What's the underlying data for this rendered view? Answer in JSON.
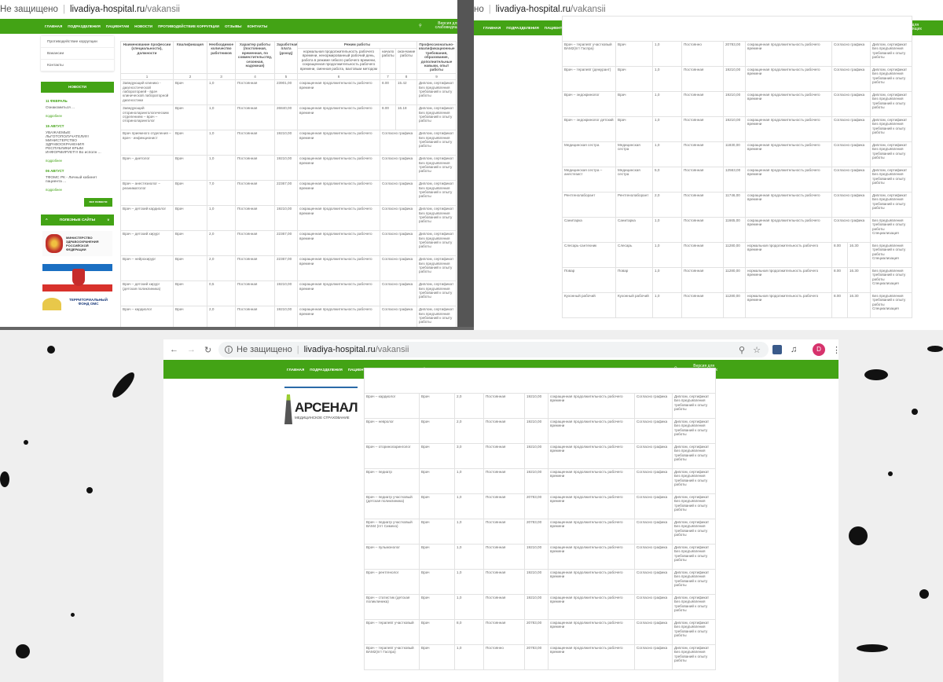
{
  "browser": {
    "security": "Не защищено",
    "security_partial": "но",
    "domain": "livadiya-hospital.ru",
    "path": "/vakansii",
    "avatar_letter": "D"
  },
  "nav": {
    "items": [
      "ГЛАВНАЯ",
      "ПОДРАЗДЕЛЕНИЯ",
      "ПАЦИЕНТАМ",
      "НОВОСТИ",
      "ПРОТИВОДЕЙСТВИЕ КОРРУПЦИИ",
      "ОТЗЫВЫ",
      "КОНТАКТЫ"
    ],
    "accessibility": "Версия для слабовидящих",
    "color": "#43a315"
  },
  "sidebar": {
    "menu": [
      "Противодействие коррупции",
      "Вакансии",
      "Контакты"
    ],
    "news_title": "НОВОСТИ",
    "news": [
      {
        "date": "11 ФЕВРАЛЬ",
        "text": "Ознакомиться ..."
      },
      {
        "date": "15 АВГУСТ",
        "text": "УВАЖАЕМЫЕ ЛЬГОТОПОЛУЧАТЕЛИ!!! МИНИСТЕРСТВО ЗДРАВООХРАНЕНИЯ РЕСПУБЛИКИ КРЫМ ИНФОРМИРУЕТ!!! Во исполн ..."
      },
      {
        "date": "06 АВГУСТ",
        "text": "ТФОМС РК - Личный кабинет пациента ..."
      }
    ],
    "more_label": "подробнее",
    "all_news": "все новости",
    "useful_sites": "ПОЛЕЗНЫЕ САЙТЫ",
    "logos": [
      "МИНИСТЕРСТВО ЗДРАВООХРАНЕНИЯ РОССИЙСКОЙ ФЕДЕРАЦИИ",
      "ТЕРРИТОРИАЛЬНЫЙ ФОНД ОМС",
      "АРСЕНАЛ",
      "МЕДИЦИНСКОЕ СТРАХОВАНИЕ"
    ]
  },
  "table": {
    "headers": [
      "Наименование профессии (специальности), должности",
      "Квалификация",
      "Необходимое количество работников",
      "Характер работы (постоянная, временная, по совместительству, сезонная, надомная)",
      "Заработная плата (доход)",
      "Режим работы",
      "Профессионально-квалификационные требования, образование, дополнительные навыки, опыт работы"
    ],
    "mode_sub": [
      "нормальная продолжительность рабочего времени, ненормированный рабочий день, работа в режиме гибкого рабочего времени, сокращенная продолжительность рабочего времени, сменная работа, вахтовым методом",
      "начало работы",
      "окончание работы"
    ],
    "numbers": [
      "1",
      "2",
      "3",
      "4",
      "5",
      "6",
      "7",
      "8",
      "9"
    ],
    "short": "сокращенная продолжительность рабочего времени",
    "normal": "нормальная продолжительность рабочего времени",
    "schedule": "Согласно графика",
    "req_doc": "Диплом, сертификат Без предъявления требований к опыту работы",
    "req_spec": "Без предъявления требований к опыту работы Специализация",
    "panel_a": [
      [
        "Заведующий клинико - диагностической лабораторией - врач клинической лабораторной диагностики",
        "Врач",
        "1,0",
        "Постоянная",
        "23901,00",
        "s",
        "8.00",
        "15.42",
        "d"
      ],
      [
        "Заведующий оториноларингологическим отделением – врач – оториноларинголог",
        "Врач",
        "1,0",
        "Постоянная",
        "26840,00",
        "s",
        "8.00",
        "16.18",
        "d"
      ],
      [
        "Врач приемного отделения – врач - инфекционист",
        "Врач",
        "1,0",
        "Постоянная",
        "19210,00",
        "s",
        "g",
        "",
        "d"
      ],
      [
        "Врач – диетолог",
        "Врач",
        "1,0",
        "Постоянная",
        "19210,00",
        "s",
        "g",
        "",
        "d"
      ],
      [
        "Врач – анестезиолог – реаниматолог",
        "Врач",
        "7,0",
        "Постоянная",
        "22367,00",
        "s",
        "g",
        "",
        "d"
      ],
      [
        "Врач – детский кардиолог",
        "Врач",
        "1,0",
        "Постоянная",
        "19210,00",
        "s",
        "g",
        "",
        "d"
      ],
      [
        "Врач – детский хирург",
        "Врач",
        "2,0",
        "Постоянная",
        "22367,00",
        "s",
        "g",
        "",
        "d"
      ],
      [
        "Врач – нейрохирург",
        "Врач",
        "2,0",
        "Постоянная",
        "22367,00",
        "s",
        "g",
        "",
        "d"
      ],
      [
        "Врач – детский хирург (детская поликлиника)",
        "Врач",
        "0,5",
        "Постоянная",
        "19210,00",
        "s",
        "g",
        "",
        "d"
      ],
      [
        "Врач – кардиолог",
        "Врач",
        "2,0",
        "Постоянная",
        "19210,00",
        "s",
        "g",
        "",
        "d"
      ]
    ],
    "panel_b": [
      [
        "Врач – терапевт участковый ВАМ2(пгт Гаспра)",
        "Врач",
        "1,0",
        "Постоянно",
        "20783,00",
        "s",
        "g",
        "",
        "d"
      ],
      [
        "Врач – терапевт (дежурант)",
        "Врач",
        "1,0",
        "Постоянная",
        "19210,00",
        "s",
        "g",
        "",
        "d"
      ],
      [
        "Врач – эндокринолог",
        "Врач",
        "1,0",
        "Постоянная",
        "19210,00",
        "s",
        "g",
        "",
        "d"
      ],
      [
        "Врач – эндокринолог детский",
        "Врач",
        "1,0",
        "Постоянная",
        "19210,00",
        "s",
        "g",
        "",
        "d"
      ],
      [
        "Медицинская сестра",
        "Медицинская сестра",
        "1,0",
        "Постоянная",
        "11830,00",
        "s",
        "g",
        "",
        "d"
      ],
      [
        "Медицинская сестра – анестезист",
        "Медицинская сестра",
        "5,0",
        "Постоянная",
        "12563,00",
        "s",
        "g",
        "",
        "d"
      ],
      [
        "Рентгенолаборант",
        "Рентгенолаборант",
        "2,0",
        "Постоянная",
        "11746,00",
        "s",
        "g",
        "",
        "d"
      ],
      [
        "Санитарка",
        "Санитарка",
        "1,0",
        "Постоянная",
        "11665,00",
        "s",
        "g",
        "",
        "p"
      ],
      [
        "Слесарь-сантехник",
        "Слесарь",
        "1,0",
        "Постоянная",
        "11280,00",
        "n",
        "8.00",
        "16.30",
        "p"
      ],
      [
        "Повар",
        "Повар",
        "1,0",
        "Постоянная",
        "11280,00",
        "n",
        "8.00",
        "16.30",
        "p"
      ],
      [
        "Кухонный рабочий",
        "Кухонный рабочий",
        "1,0",
        "Постоянная",
        "11280,00",
        "n",
        "8.00",
        "16.30",
        "p"
      ]
    ],
    "panel_c": [
      [
        "Врач – кардиолог",
        "Врач",
        "2,0",
        "Постоянная",
        "19210,00",
        "s",
        "g",
        "",
        "d"
      ],
      [
        "Врач – невролог",
        "Врач",
        "2,0",
        "Постоянная",
        "19210,00",
        "s",
        "g",
        "",
        "d"
      ],
      [
        "Врач – оториноларинголог",
        "Врач",
        "3,0",
        "Постоянная",
        "19210,00",
        "s",
        "g",
        "",
        "d"
      ],
      [
        "Врач – педиатр",
        "Врач",
        "1,0",
        "Постоянная",
        "19210,00",
        "s",
        "g",
        "",
        "d"
      ],
      [
        "Врач – педиатр участковый (детская поликлиника)",
        "Врач",
        "1,0",
        "Постоянная",
        "20783,00",
        "s",
        "g",
        "",
        "d"
      ],
      [
        "Врач – педиатр участковый ВАМ4 (пгт Симеиз)",
        "Врач",
        "1,0",
        "Постоянная",
        "20783,00",
        "s",
        "g",
        "",
        "d"
      ],
      [
        "Врач – пульмонолог",
        "Врач",
        "1,0",
        "Постоянная",
        "19210,00",
        "s",
        "g",
        "",
        "d"
      ],
      [
        "Врач – рентгенолог",
        "Врач",
        "1,0",
        "Постоянная",
        "19210,00",
        "s",
        "g",
        "",
        "d"
      ],
      [
        "Врач – статистик (детская поликлиника)",
        "Врач",
        "1,0",
        "Постоянная",
        "19210,00",
        "s",
        "g",
        "",
        "d"
      ],
      [
        "Врач – терапевт участковый",
        "Врач",
        "8,0",
        "Постоянная",
        "20783,00",
        "s",
        "g",
        "",
        "d"
      ],
      [
        "Врач – терапевт участковый ВАМ2(пгт Гаспра)",
        "Врач",
        "1,0",
        "Постоянно",
        "20783,00",
        "s",
        "g",
        "",
        "d"
      ]
    ]
  }
}
